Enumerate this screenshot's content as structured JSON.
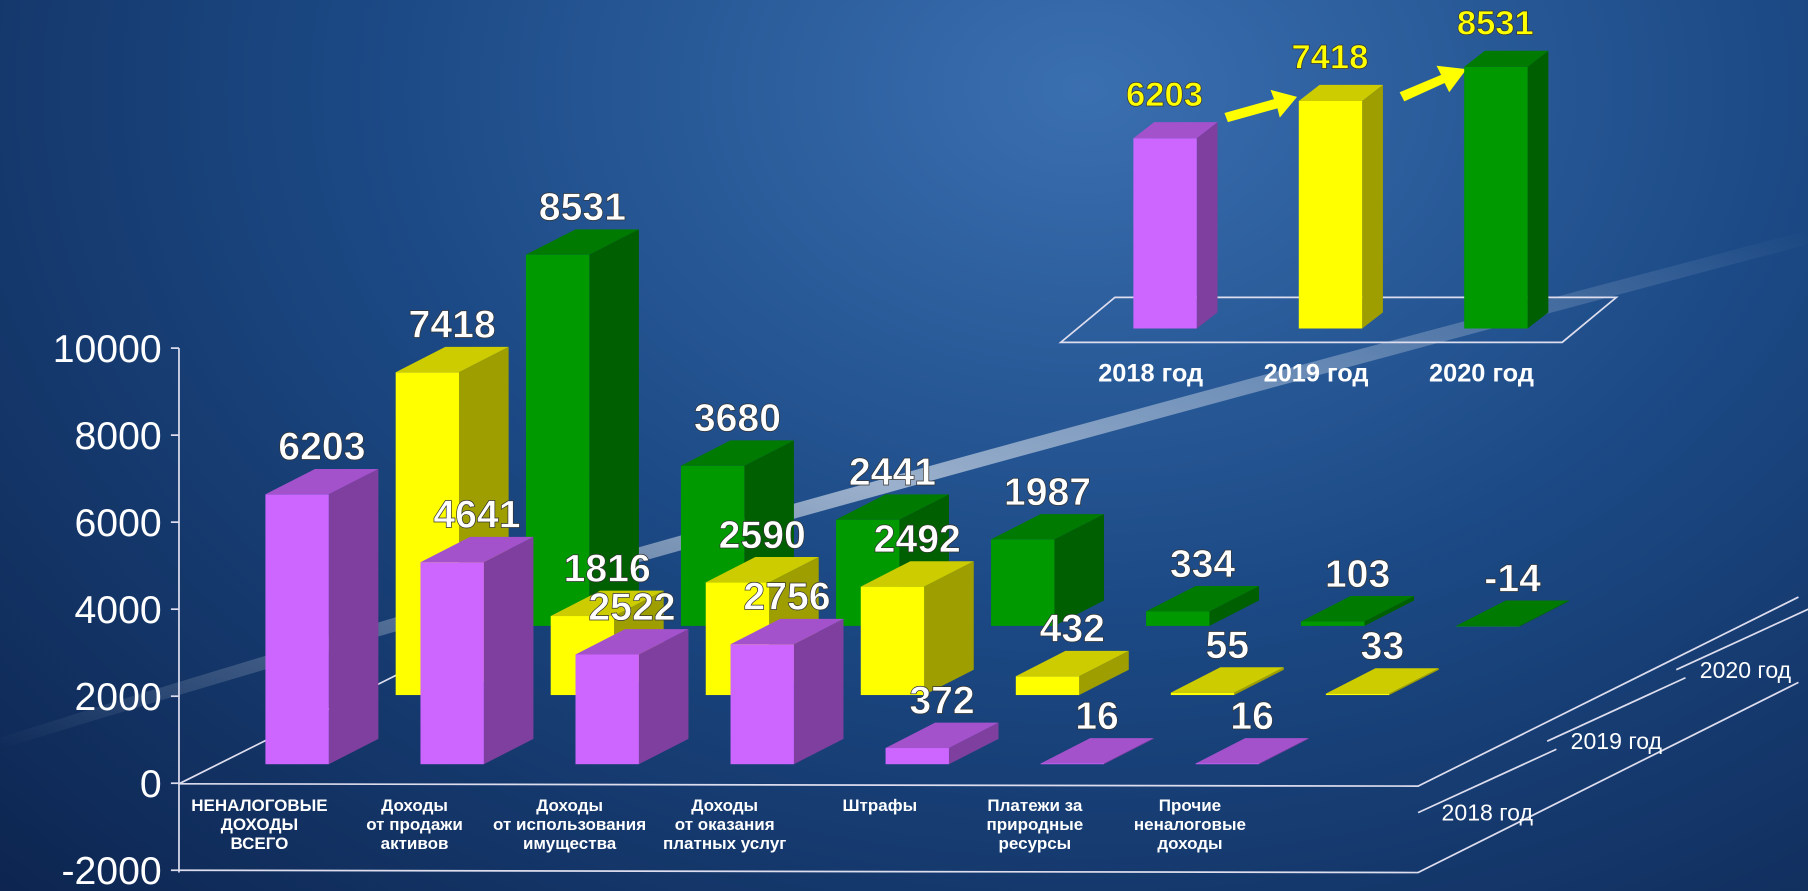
{
  "chart_data": [
    {
      "type": "bar3d",
      "categories": [
        "НЕНАЛОГОВЫЕ\nДОХОДЫ\nВСЕГО",
        "Доходы\nот продажи\nактивов",
        "Доходы\nот использования\nимущества",
        "Доходы\nот оказания\nплатных услуг",
        "Штрафы",
        "Платежи за\nприродные\nресурсы",
        "Прочие\nненалоговые\nдоходы"
      ],
      "series": [
        {
          "name": "2018 год",
          "color": "#cc66ff",
          "values": [
            6203,
            4641,
            2522,
            2756,
            372,
            16,
            16
          ]
        },
        {
          "name": "2019 год",
          "color": "#ffff00",
          "values": [
            7418,
            1816,
            2590,
            2492,
            432,
            55,
            33
          ]
        },
        {
          "name": "2020 год",
          "color": "#009900",
          "values": [
            8531,
            3680,
            2441,
            1987,
            334,
            103,
            -14
          ]
        }
      ],
      "ylim": [
        -2000,
        10000
      ],
      "yticks": [
        -2000,
        0,
        2000,
        4000,
        6000,
        8000,
        10000
      ]
    },
    {
      "type": "bar3d-inset",
      "categories": [
        "2018 год",
        "2019 год",
        "2020 год"
      ],
      "values": [
        6203,
        7418,
        8531
      ],
      "colors": [
        "#cc66ff",
        "#ffff00",
        "#009900"
      ]
    }
  ]
}
